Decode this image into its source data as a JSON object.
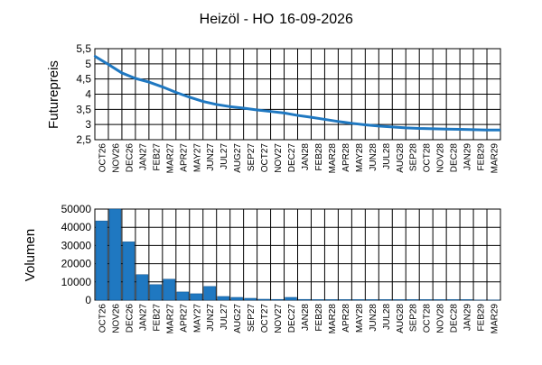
{
  "chart_data": [
    {
      "type": "line",
      "title": "Heizöl - HO",
      "date": "16-09-2026",
      "ylabel": "Futurepreis",
      "ylim": [
        2.5,
        5.5
      ],
      "yticks": [
        "2,5",
        "3",
        "3,5",
        "4",
        "4,5",
        "5",
        "5,5"
      ],
      "grid": true,
      "categories": [
        "OCT26",
        "NOV26",
        "DEC26",
        "JAN27",
        "FEB27",
        "MAR27",
        "APR27",
        "MAY27",
        "JUN27",
        "JUL27",
        "AUG27",
        "SEP27",
        "OCT27",
        "NOV27",
        "DEC27",
        "JAN28",
        "FEB28",
        "MAR28",
        "APR28",
        "MAY28",
        "JUN28",
        "JUL28",
        "AUG28",
        "SEP28",
        "OCT28",
        "NOV28",
        "DEC28",
        "JAN29",
        "FEB29",
        "MAR29"
      ],
      "values": [
        5.25,
        4.98,
        4.7,
        4.52,
        4.4,
        4.24,
        4.06,
        3.9,
        3.76,
        3.66,
        3.59,
        3.54,
        3.48,
        3.43,
        3.38,
        3.3,
        3.24,
        3.17,
        3.1,
        3.04,
        2.99,
        2.95,
        2.92,
        2.89,
        2.87,
        2.86,
        2.85,
        2.84,
        2.83,
        2.82
      ],
      "color": "#1f78c1"
    },
    {
      "type": "bar",
      "ylabel": "Volumen",
      "ylim": [
        0,
        50000
      ],
      "yticks": [
        "0",
        "10000",
        "20000",
        "30000",
        "40000",
        "50000"
      ],
      "grid": true,
      "categories": [
        "OCT26",
        "NOV26",
        "DEC26",
        "JAN27",
        "FEB27",
        "MAR27",
        "APR27",
        "MAY27",
        "JUN27",
        "JUL27",
        "AUG27",
        "SEP27",
        "OCT27",
        "NOV27",
        "DEC27",
        "JAN28",
        "FEB28",
        "MAR28",
        "APR28",
        "MAY28",
        "JUN28",
        "JUL28",
        "AUG28",
        "SEP28",
        "OCT28",
        "NOV28",
        "DEC28",
        "JAN29",
        "FEB29",
        "MAR29"
      ],
      "values": [
        43500,
        50000,
        32000,
        14000,
        8500,
        11500,
        4500,
        3500,
        7500,
        2000,
        1500,
        1000,
        500,
        400,
        1500,
        400,
        300,
        300,
        300,
        300,
        300,
        300,
        300,
        300,
        300,
        300,
        300,
        300,
        100,
        100
      ],
      "color": "#1f78c1"
    }
  ]
}
